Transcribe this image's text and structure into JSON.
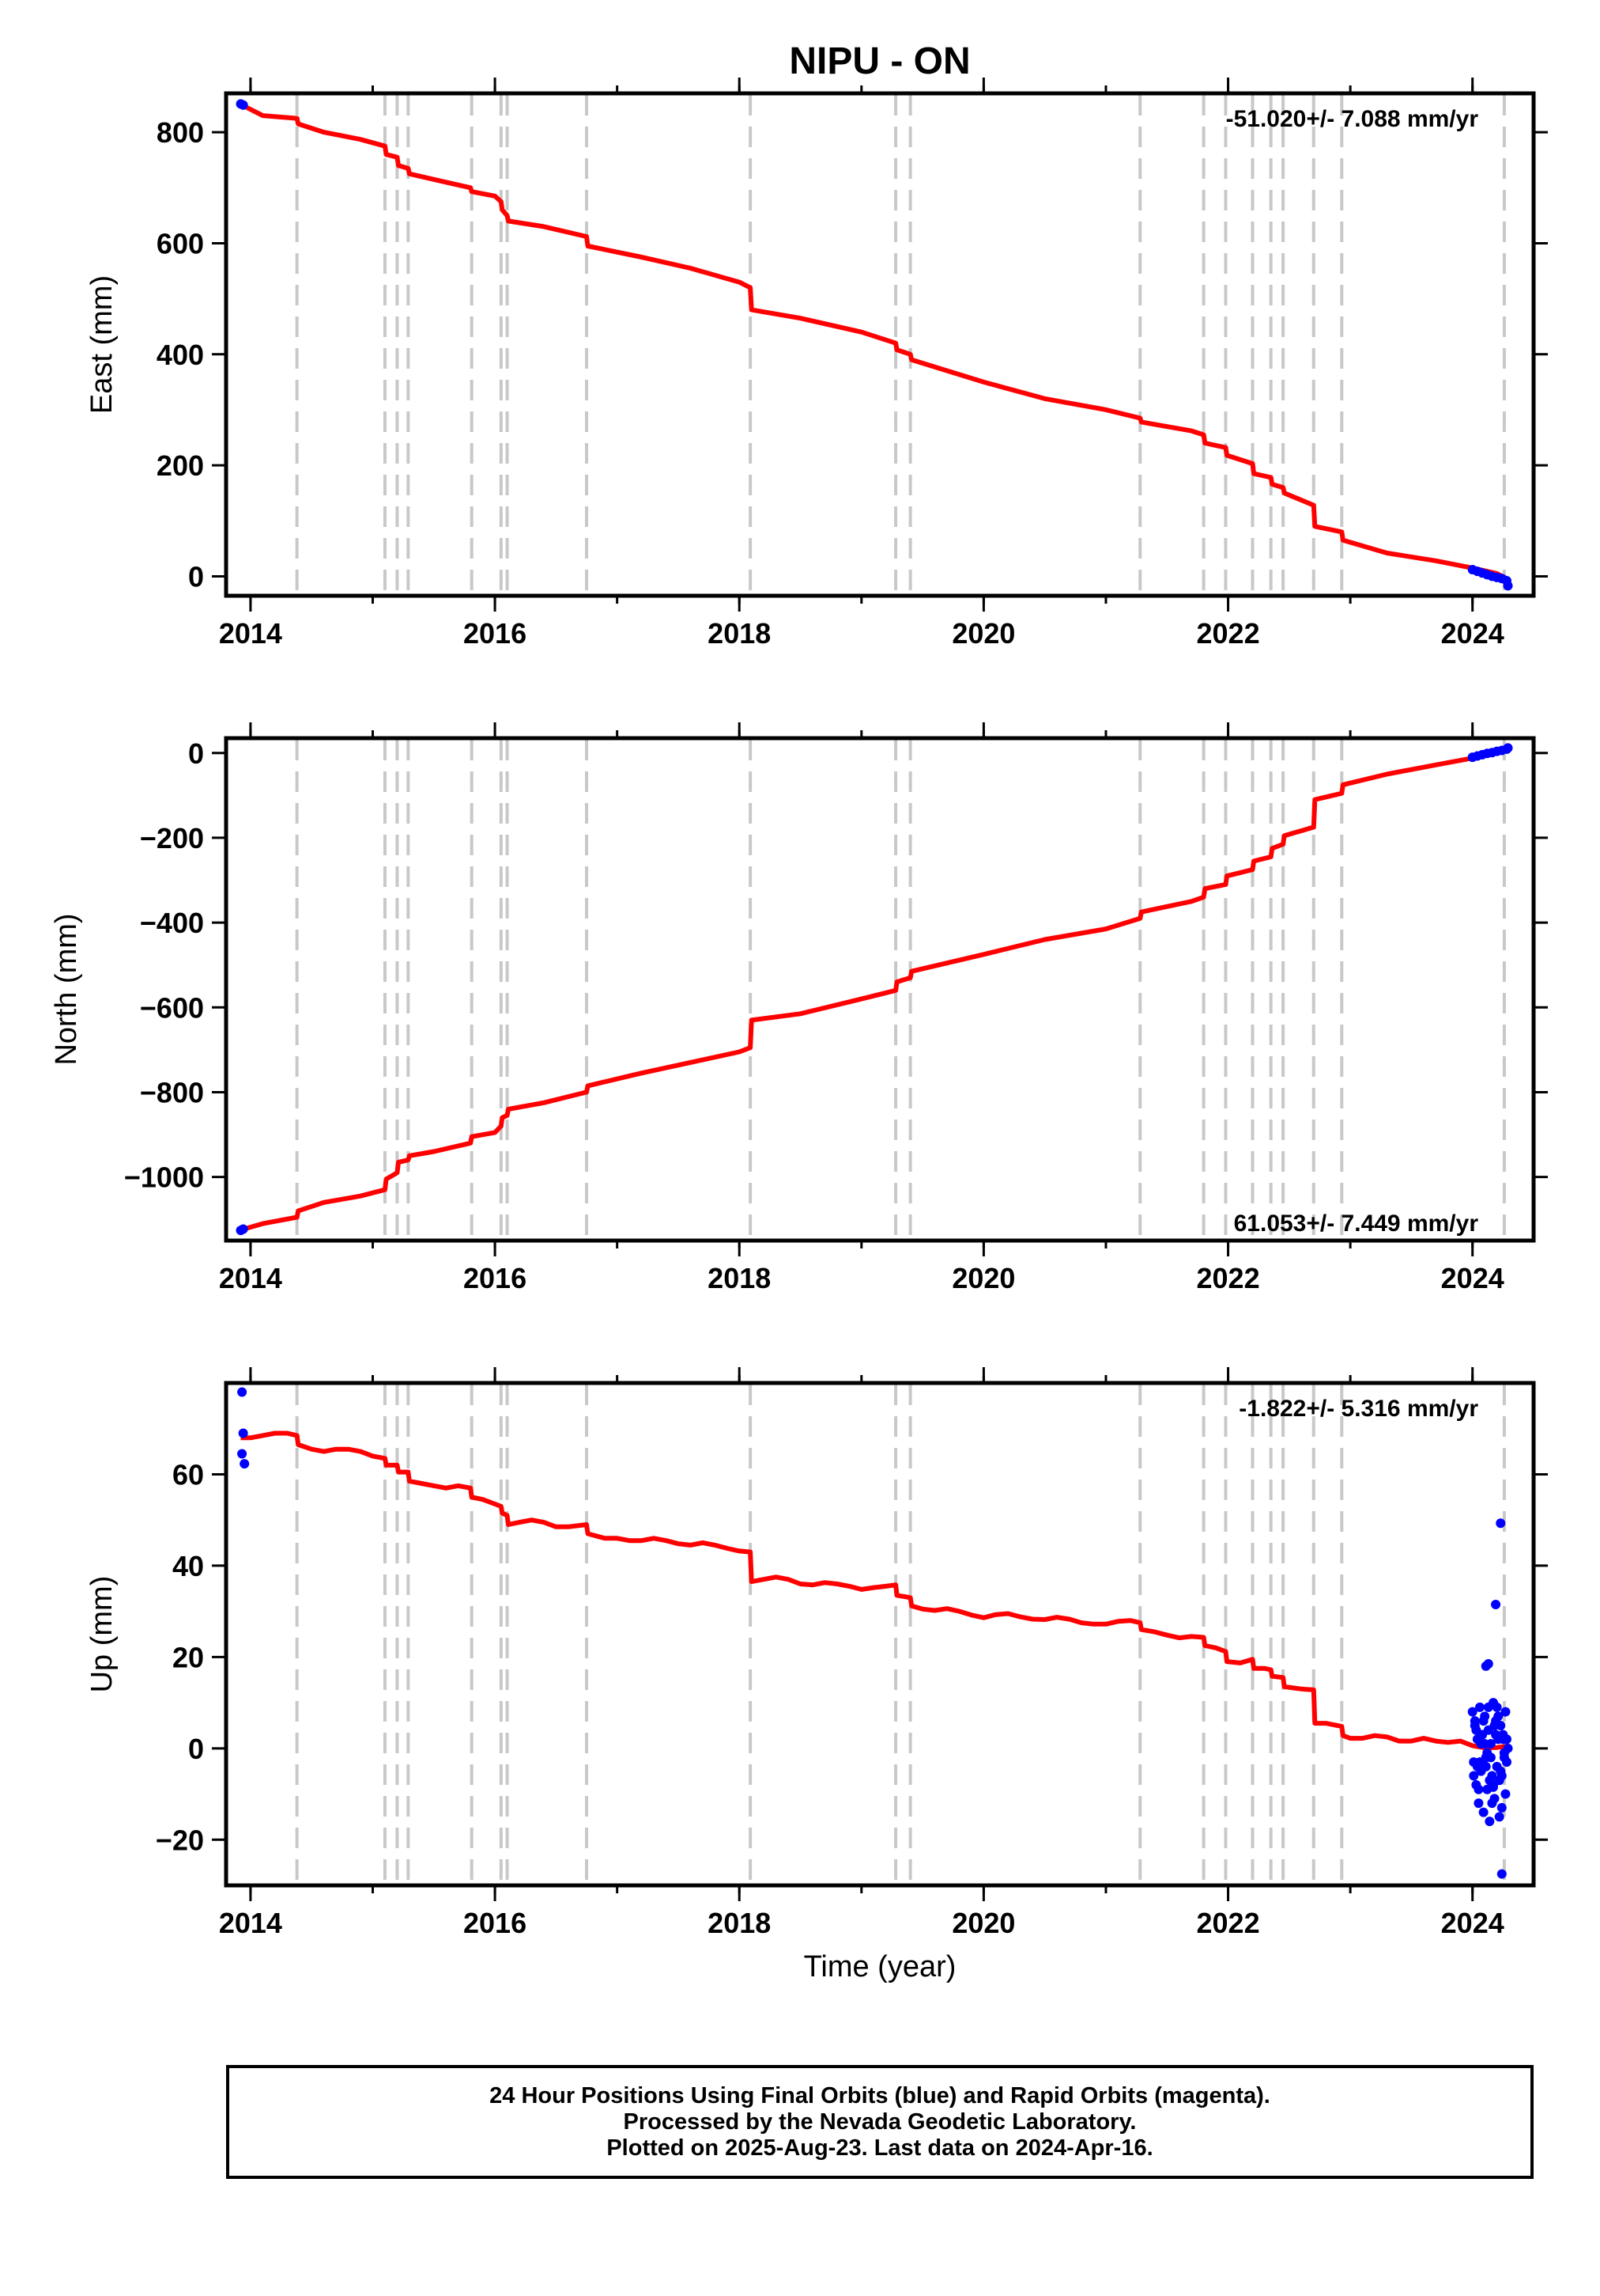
{
  "chart_data": [
    {
      "type": "line",
      "panel": "east",
      "title": "NIPU - ON",
      "ylabel": "East (mm)",
      "xlabel": "",
      "xlim": [
        2013.8,
        2024.5
      ],
      "ylim": [
        -35,
        870
      ],
      "xticks": [
        2014,
        2016,
        2018,
        2020,
        2022,
        2024
      ],
      "yticks": [
        0,
        200,
        400,
        600,
        800
      ],
      "ytick_labels": [
        "0",
        "200",
        "400",
        "600",
        "800"
      ],
      "rate_label": "-51.020+/- 7.088 mm/yr",
      "rate_position": "top-right",
      "model_color": "#ff0000",
      "final_orbit_color": "#0000ff",
      "grid": false,
      "model_series": {
        "x": [
          2013.92,
          2014.1,
          2014.38,
          2014.39,
          2014.6,
          2014.9,
          2015.1,
          2015.11,
          2015.2,
          2015.21,
          2015.29,
          2015.3,
          2015.5,
          2015.8,
          2015.81,
          2016.0,
          2016.05,
          2016.06,
          2016.1,
          2016.11,
          2016.4,
          2016.75,
          2016.76,
          2017.2,
          2017.6,
          2018.0,
          2018.09,
          2018.1,
          2018.5,
          2019.0,
          2019.28,
          2019.29,
          2019.4,
          2019.41,
          2020.0,
          2020.5,
          2021.0,
          2021.28,
          2021.29,
          2021.7,
          2021.8,
          2021.81,
          2021.98,
          2021.99,
          2022.2,
          2022.21,
          2022.35,
          2022.36,
          2022.45,
          2022.46,
          2022.7,
          2022.71,
          2022.93,
          2022.94,
          2023.3,
          2023.7,
          2024.0,
          2024.2,
          2024.29
        ],
        "y": [
          850,
          830,
          825,
          815,
          800,
          787,
          775,
          760,
          755,
          740,
          735,
          725,
          715,
          700,
          693,
          685,
          675,
          660,
          650,
          640,
          630,
          612,
          595,
          575,
          555,
          530,
          520,
          480,
          465,
          440,
          420,
          408,
          400,
          390,
          350,
          320,
          300,
          285,
          278,
          262,
          255,
          240,
          232,
          218,
          203,
          185,
          178,
          166,
          160,
          150,
          128,
          90,
          80,
          65,
          42,
          28,
          15,
          5,
          -5
        ]
      },
      "final_orbit_points": {
        "x": [
          2013.92,
          2013.94,
          2024.0,
          2024.04,
          2024.08,
          2024.12,
          2024.16,
          2024.2,
          2024.24,
          2024.28,
          2024.29
        ],
        "y": [
          851,
          849,
          12,
          9,
          6,
          3,
          0,
          -2,
          -4,
          -8,
          -17
        ]
      }
    },
    {
      "type": "line",
      "panel": "north",
      "ylabel": "North (mm)",
      "xlabel": "",
      "xlim": [
        2013.8,
        2024.5
      ],
      "ylim": [
        -1150,
        35
      ],
      "xticks": [
        2014,
        2016,
        2018,
        2020,
        2022,
        2024
      ],
      "yticks": [
        -1000,
        -800,
        -600,
        -400,
        -200,
        0
      ],
      "ytick_labels": [
        "−1000",
        "−800",
        "−600",
        "−400",
        "−200",
        "0"
      ],
      "rate_label": "61.053+/- 7.449 mm/yr",
      "rate_position": "bottom-right",
      "model_color": "#ff0000",
      "final_orbit_color": "#0000ff",
      "grid": false,
      "model_series": {
        "x": [
          2013.92,
          2014.1,
          2014.38,
          2014.39,
          2014.6,
          2014.9,
          2015.1,
          2015.11,
          2015.2,
          2015.21,
          2015.29,
          2015.3,
          2015.5,
          2015.8,
          2015.81,
          2016.0,
          2016.05,
          2016.06,
          2016.1,
          2016.11,
          2016.4,
          2016.75,
          2016.76,
          2017.2,
          2017.6,
          2018.0,
          2018.09,
          2018.1,
          2018.5,
          2019.0,
          2019.28,
          2019.29,
          2019.4,
          2019.41,
          2020.0,
          2020.5,
          2021.0,
          2021.28,
          2021.29,
          2021.7,
          2021.8,
          2021.81,
          2021.98,
          2021.99,
          2022.2,
          2022.21,
          2022.35,
          2022.36,
          2022.45,
          2022.46,
          2022.7,
          2022.71,
          2022.93,
          2022.94,
          2023.3,
          2023.7,
          2024.0,
          2024.2,
          2024.29
        ],
        "y": [
          -1125,
          -1110,
          -1095,
          -1080,
          -1060,
          -1045,
          -1030,
          -1005,
          -990,
          -965,
          -960,
          -950,
          -940,
          -920,
          -905,
          -895,
          -880,
          -860,
          -855,
          -840,
          -825,
          -800,
          -785,
          -755,
          -730,
          -705,
          -695,
          -630,
          -615,
          -580,
          -560,
          -540,
          -530,
          -515,
          -475,
          -440,
          -415,
          -390,
          -375,
          -350,
          -340,
          -320,
          -310,
          -290,
          -275,
          -255,
          -245,
          -225,
          -215,
          -195,
          -175,
          -110,
          -95,
          -75,
          -50,
          -28,
          -12,
          3,
          10
        ]
      },
      "final_orbit_points": {
        "x": [
          2013.92,
          2013.94,
          2024.0,
          2024.04,
          2024.08,
          2024.12,
          2024.16,
          2024.2,
          2024.24,
          2024.28,
          2024.29
        ],
        "y": [
          -1126,
          -1123,
          -10,
          -7,
          -4,
          -1,
          1,
          4,
          6,
          9,
          12
        ]
      }
    },
    {
      "type": "scatter",
      "panel": "up",
      "ylabel": "Up (mm)",
      "xlabel": "Time (year)",
      "xlim": [
        2013.8,
        2024.5
      ],
      "ylim": [
        -30,
        80
      ],
      "xticks": [
        2014,
        2016,
        2018,
        2020,
        2022,
        2024
      ],
      "yticks": [
        -20,
        0,
        20,
        40,
        60
      ],
      "ytick_labels": [
        "−20",
        "0",
        "20",
        "40",
        "60"
      ],
      "rate_label": "-1.822+/- 5.316 mm/yr",
      "rate_position": "top-right",
      "model_color": "#ff0000",
      "final_orbit_color": "#0000ff",
      "grid": false,
      "model_series": {
        "x": [
          2013.92,
          2014.0,
          2014.1,
          2014.2,
          2014.3,
          2014.38,
          2014.39,
          2014.5,
          2014.6,
          2014.7,
          2014.8,
          2014.9,
          2015.0,
          2015.1,
          2015.11,
          2015.2,
          2015.21,
          2015.29,
          2015.3,
          2015.4,
          2015.5,
          2015.6,
          2015.7,
          2015.8,
          2015.81,
          2015.9,
          2016.0,
          2016.05,
          2016.06,
          2016.1,
          2016.11,
          2016.2,
          2016.3,
          2016.4,
          2016.5,
          2016.6,
          2016.75,
          2016.76,
          2016.9,
          2017.0,
          2017.1,
          2017.2,
          2017.3,
          2017.4,
          2017.5,
          2017.6,
          2017.7,
          2017.8,
          2017.9,
          2018.0,
          2018.09,
          2018.1,
          2018.2,
          2018.3,
          2018.4,
          2018.5,
          2018.6,
          2018.7,
          2018.8,
          2018.9,
          2019.0,
          2019.1,
          2019.2,
          2019.28,
          2019.29,
          2019.4,
          2019.41,
          2019.5,
          2019.6,
          2019.7,
          2019.8,
          2019.9,
          2020.0,
          2020.1,
          2020.2,
          2020.3,
          2020.4,
          2020.5,
          2020.6,
          2020.7,
          2020.8,
          2020.9,
          2021.0,
          2021.1,
          2021.2,
          2021.28,
          2021.29,
          2021.4,
          2021.5,
          2021.6,
          2021.7,
          2021.8,
          2021.81,
          2021.9,
          2021.98,
          2021.99,
          2022.1,
          2022.2,
          2022.21,
          2022.3,
          2022.35,
          2022.36,
          2022.45,
          2022.46,
          2022.6,
          2022.7,
          2022.71,
          2022.8,
          2022.93,
          2022.94,
          2023.0,
          2023.1,
          2023.2,
          2023.3,
          2023.4,
          2023.5,
          2023.6,
          2023.7,
          2023.8,
          2023.9,
          2024.0,
          2024.1,
          2024.2,
          2024.29
        ],
        "y": [
          68,
          68,
          68.5,
          69,
          69,
          68.5,
          66.5,
          65.5,
          65,
          65.5,
          65.5,
          65,
          64,
          63.5,
          62,
          62,
          60.5,
          60.5,
          58.5,
          58,
          57.5,
          57,
          57.5,
          57,
          55,
          54.5,
          53.5,
          53,
          51.5,
          51,
          49,
          49.5,
          50,
          49.5,
          48.5,
          48.5,
          49,
          47,
          46,
          46,
          45.5,
          45.5,
          46,
          45.5,
          44.8,
          44.5,
          45,
          44.5,
          43.8,
          43.2,
          43,
          36.5,
          37,
          37.5,
          37,
          36,
          35.8,
          36.3,
          36,
          35.5,
          34.8,
          35.2,
          35.5,
          35.8,
          33.5,
          33,
          31.2,
          30.5,
          30.2,
          30.6,
          30,
          29.2,
          28.6,
          29.3,
          29.5,
          28.8,
          28.3,
          28.2,
          28.7,
          28.3,
          27.5,
          27.2,
          27.2,
          27.8,
          28,
          27.5,
          26,
          25.5,
          24.8,
          24.2,
          24.5,
          24.3,
          22.5,
          22,
          21.2,
          19,
          18.7,
          19.5,
          17.5,
          17.5,
          17.2,
          15.8,
          15.5,
          13.5,
          13,
          12.8,
          5.5,
          5.5,
          4.8,
          2.8,
          2.2,
          2.2,
          2.8,
          2.5,
          1.6,
          1.6,
          2.2,
          1.6,
          1.3,
          1.6,
          0.6,
          0.1,
          0.2,
          0.5
        ]
      },
      "final_orbit_points": {
        "x": [
          2013.93,
          2013.94,
          2013.93,
          2013.95,
          2024.0,
          2024.01,
          2024.02,
          2024.03,
          2024.04,
          2024.05,
          2024.06,
          2024.07,
          2024.08,
          2024.09,
          2024.1,
          2024.11,
          2024.12,
          2024.13,
          2024.14,
          2024.15,
          2024.16,
          2024.17,
          2024.18,
          2024.19,
          2024.2,
          2024.21,
          2024.22,
          2024.23,
          2024.24,
          2024.25,
          2024.26,
          2024.27,
          2024.28,
          2024.29,
          2024.01,
          2024.03,
          2024.05,
          2024.07,
          2024.09,
          2024.11,
          2024.13,
          2024.15,
          2024.17,
          2024.19,
          2024.21,
          2024.23,
          2024.25,
          2024.27,
          2024.02,
          2024.06,
          2024.1,
          2024.14,
          2024.18,
          2024.22,
          2024.26,
          2024.04,
          2024.08,
          2024.12,
          2024.16,
          2024.2,
          2024.24,
          2024.28,
          2024.11,
          2024.13,
          2024.19,
          2024.23,
          2024.24,
          2024.17
        ],
        "y": [
          78,
          69,
          64.5,
          62.3,
          8,
          -3,
          5,
          -8,
          2,
          -12,
          9,
          -5,
          3,
          -14,
          7,
          -2,
          -9,
          4,
          -16,
          1,
          -6,
          10,
          -11,
          6,
          -4,
          2,
          -7,
          5,
          -13,
          3,
          -1,
          8,
          -3,
          0,
          -6,
          4,
          -9,
          1,
          6,
          -4,
          9,
          -2,
          -8,
          3,
          7,
          -5,
          2,
          -10,
          6,
          -3,
          1,
          -7,
          5,
          -15,
          -2,
          -4,
          3,
          -1,
          -12,
          9,
          -6,
          2,
          18,
          18.5,
          31.5,
          49.3,
          -27.5,
          -8.5
        ]
      }
    }
  ],
  "axis_text": {
    "tick_2014": "2014",
    "tick_2016": "2016",
    "tick_2018": "2018",
    "tick_2020": "2020",
    "tick_2022": "2022",
    "tick_2024": "2024"
  },
  "event_lines": {
    "color": "#c8c8c8",
    "x": [
      2014.38,
      2015.1,
      2015.2,
      2015.29,
      2015.81,
      2016.05,
      2016.1,
      2016.75,
      2018.09,
      2019.28,
      2019.4,
      2021.28,
      2021.8,
      2021.98,
      2022.2,
      2022.35,
      2022.45,
      2022.7,
      2022.93,
      2024.26
    ]
  },
  "caption": {
    "line1": "24 Hour Positions Using Final Orbits (blue) and Rapid Orbits (magenta).",
    "line2": "Processed by the Nevada Geodetic Laboratory.",
    "line3": "Plotted on 2025-Aug-23. Last data on 2024-Apr-16."
  }
}
